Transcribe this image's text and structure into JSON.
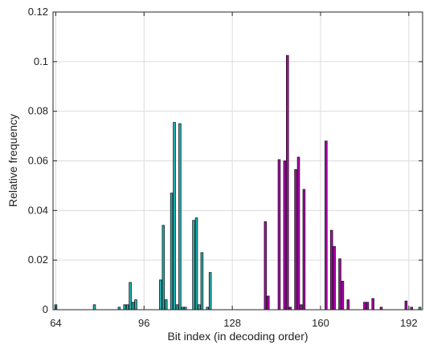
{
  "chart_data": {
    "type": "bar",
    "title": "",
    "xlabel": "Bit index (in decoding order)",
    "ylabel": "Relative frequency",
    "xlim": [
      63,
      197
    ],
    "ylim": [
      0,
      0.12
    ],
    "xticks": [
      64,
      96,
      128,
      160,
      192
    ],
    "yticks": [
      0,
      0.02,
      0.04,
      0.06,
      0.08,
      0.1,
      0.12
    ],
    "ytick_labels": [
      "0",
      "0.02",
      "0.04",
      "0.06",
      "0.08",
      "0.1",
      "0.12"
    ],
    "grid": true,
    "bar_width": 0.8,
    "series": [
      {
        "color": "#1fb3b3",
        "points": [
          {
            "x": 64,
            "y": 0.002
          },
          {
            "x": 78,
            "y": 0.002
          },
          {
            "x": 87,
            "y": 0.001
          },
          {
            "x": 89,
            "y": 0.002
          },
          {
            "x": 90,
            "y": 0.002
          },
          {
            "x": 91,
            "y": 0.011
          },
          {
            "x": 92,
            "y": 0.003
          },
          {
            "x": 93,
            "y": 0.004
          },
          {
            "x": 102,
            "y": 0.012
          },
          {
            "x": 103,
            "y": 0.034
          },
          {
            "x": 104,
            "y": 0.004
          },
          {
            "x": 106,
            "y": 0.047
          },
          {
            "x": 107,
            "y": 0.0755
          },
          {
            "x": 108,
            "y": 0.002
          },
          {
            "x": 109,
            "y": 0.075
          },
          {
            "x": 110,
            "y": 0.001
          },
          {
            "x": 111,
            "y": 0.001
          },
          {
            "x": 114,
            "y": 0.036
          },
          {
            "x": 115,
            "y": 0.037
          },
          {
            "x": 116,
            "y": 0.002
          },
          {
            "x": 117,
            "y": 0.023
          },
          {
            "x": 119,
            "y": 0.001
          },
          {
            "x": 120,
            "y": 0.015
          },
          {
            "x": 196,
            "y": 0.001
          }
        ]
      },
      {
        "color": "#b000b0",
        "points": [
          {
            "x": 140,
            "y": 0.0355
          },
          {
            "x": 141,
            "y": 0.0055
          },
          {
            "x": 145,
            "y": 0.0605
          },
          {
            "x": 147,
            "y": 0.06
          },
          {
            "x": 148,
            "y": 0.1025
          },
          {
            "x": 149,
            "y": 0.001
          },
          {
            "x": 151,
            "y": 0.0565
          },
          {
            "x": 152,
            "y": 0.0615
          },
          {
            "x": 153,
            "y": 0.002
          },
          {
            "x": 154,
            "y": 0.0485
          },
          {
            "x": 162,
            "y": 0.068
          },
          {
            "x": 164,
            "y": 0.032
          },
          {
            "x": 165,
            "y": 0.0255
          },
          {
            "x": 167,
            "y": 0.0205
          },
          {
            "x": 168,
            "y": 0.0115
          },
          {
            "x": 170,
            "y": 0.004
          },
          {
            "x": 176,
            "y": 0.003
          },
          {
            "x": 177,
            "y": 0.003
          },
          {
            "x": 179,
            "y": 0.0045
          },
          {
            "x": 182,
            "y": 0.001
          },
          {
            "x": 191,
            "y": 0.0035
          },
          {
            "x": 193,
            "y": 0.001
          }
        ]
      }
    ]
  }
}
